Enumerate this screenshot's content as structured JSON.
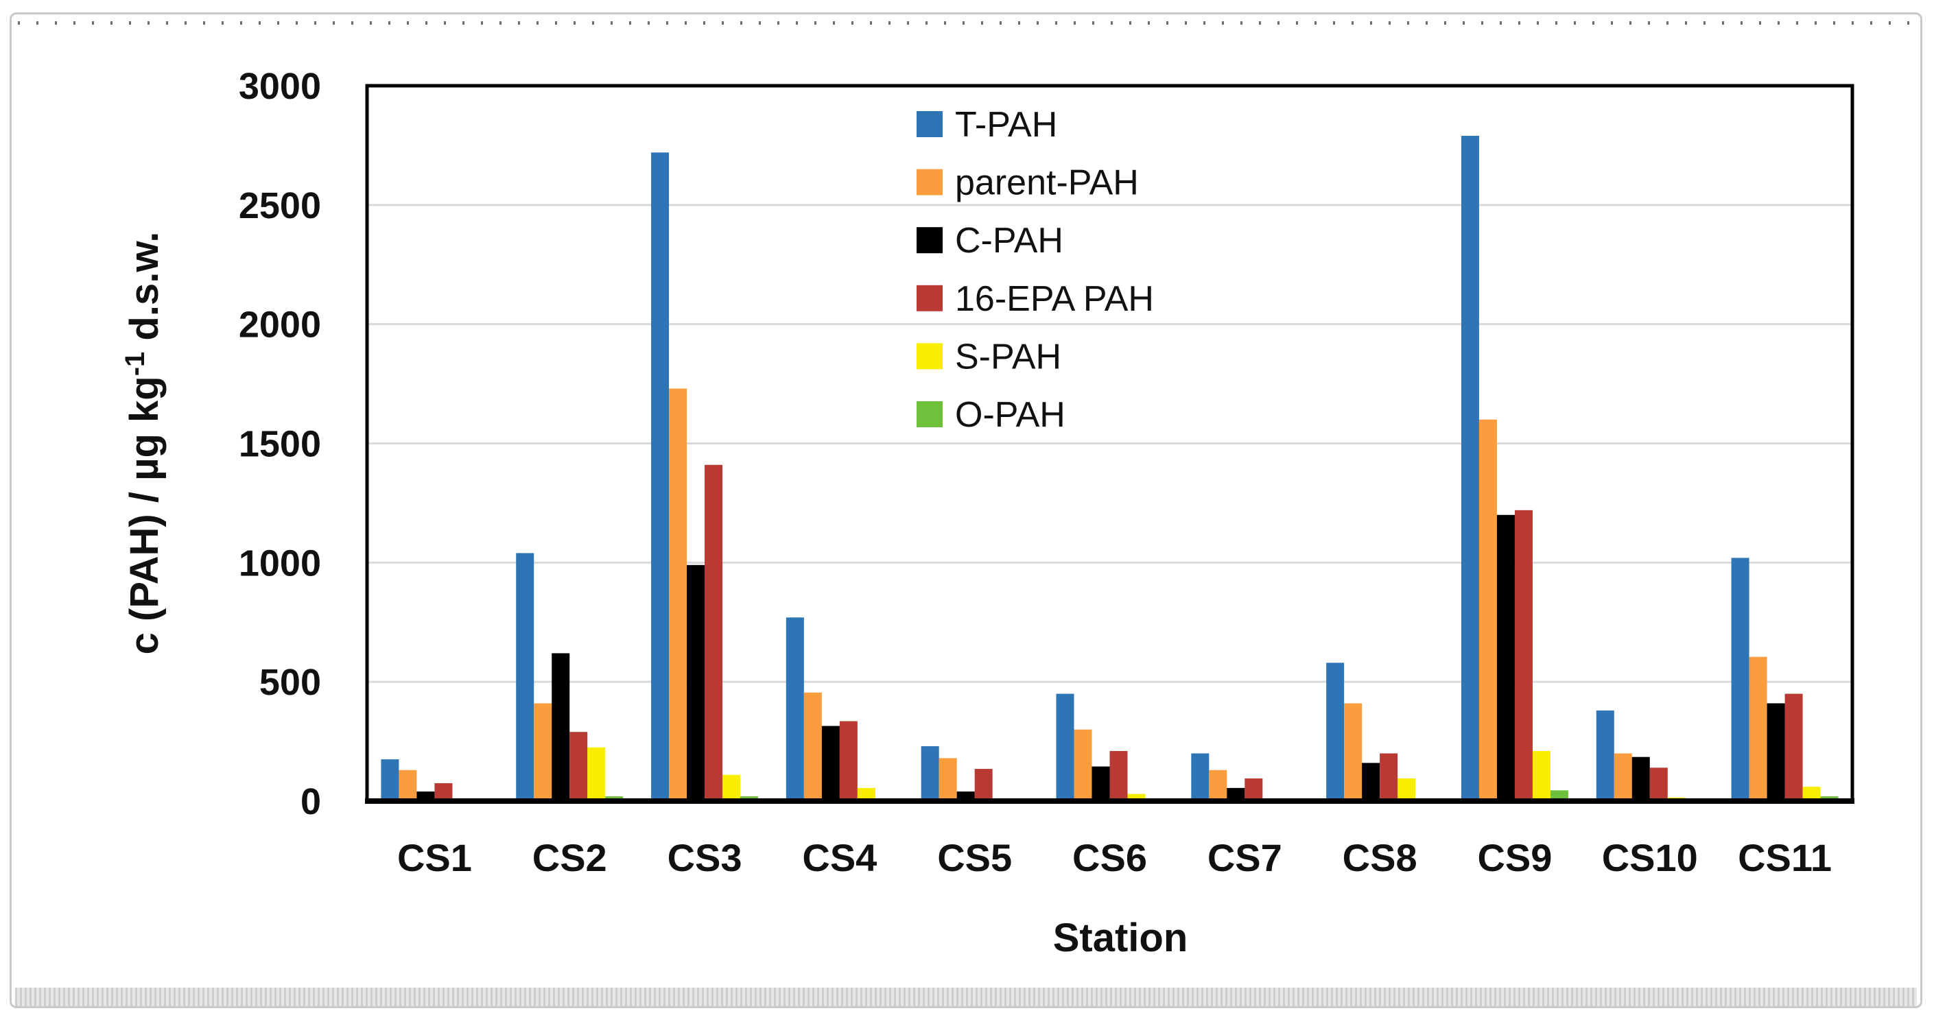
{
  "figure": {
    "background": "#ffffff",
    "frame_border_color": "#c9c9c9",
    "scan_artifact_top": "dashed dark line",
    "scan_artifact_bottom": "gray hatched strip"
  },
  "chart_data": {
    "type": "bar",
    "title": "",
    "xlabel": "Station",
    "ylabel": {
      "prefix": "c (PAH) / µg kg",
      "superscript": "-1",
      "suffix": " d.s.w.",
      "full_text": "c (PAH) / µg kg -1 d.s.w."
    },
    "categories": [
      "CS1",
      "CS2",
      "CS3",
      "CS4",
      "CS5",
      "CS6",
      "CS7",
      "CS8",
      "CS9",
      "CS10",
      "CS11"
    ],
    "series": [
      {
        "name": "T-PAH",
        "color": "#2E75B6",
        "values": [
          175,
          1040,
          2720,
          770,
          230,
          450,
          200,
          580,
          2790,
          380,
          1020
        ]
      },
      {
        "name": "parent-PAH",
        "color": "#F99D3E",
        "values": [
          130,
          410,
          1730,
          455,
          180,
          300,
          130,
          410,
          1600,
          200,
          605
        ]
      },
      {
        "name": "C-PAH",
        "color": "#000000",
        "values": [
          40,
          620,
          990,
          315,
          40,
          145,
          55,
          160,
          1200,
          185,
          410
        ]
      },
      {
        "name": "16-EPA PAH",
        "color": "#B93A32",
        "values": [
          75,
          290,
          1410,
          335,
          135,
          210,
          95,
          200,
          1220,
          140,
          450
        ]
      },
      {
        "name": "S-PAH",
        "color": "#F9ED00",
        "values": [
          0,
          225,
          110,
          55,
          0,
          30,
          0,
          95,
          210,
          15,
          60
        ]
      },
      {
        "name": "O-PAH",
        "color": "#6FC13C",
        "values": [
          0,
          20,
          20,
          0,
          0,
          0,
          0,
          0,
          45,
          0,
          20
        ]
      }
    ],
    "ylim": [
      0,
      3000
    ],
    "yticks": [
      0,
      500,
      1000,
      1500,
      2000,
      2500,
      3000
    ],
    "grid": true,
    "grid_color": "#D9D9D9",
    "axis_color": "#000000",
    "legend_position": "inside top, left of center, vertical"
  }
}
